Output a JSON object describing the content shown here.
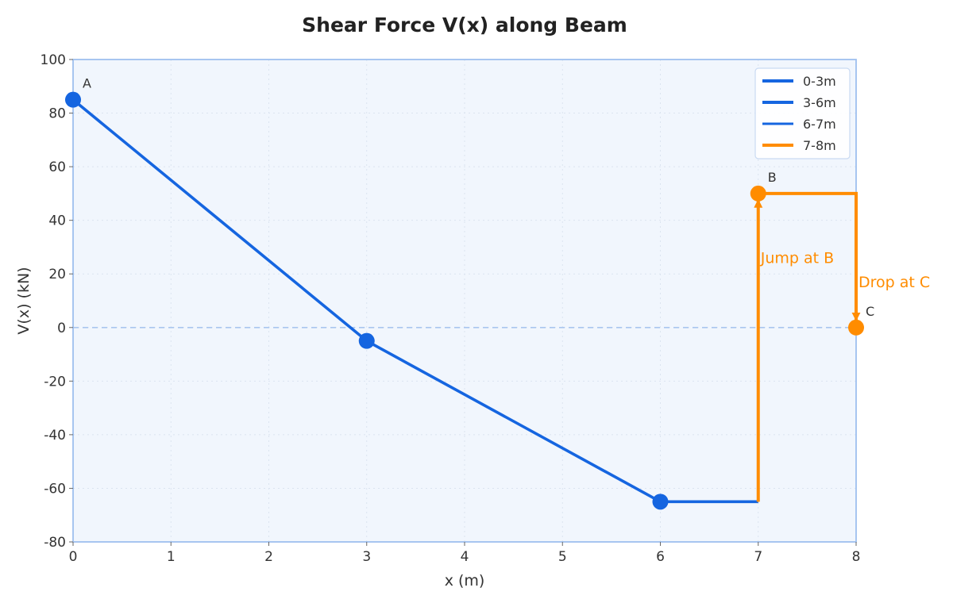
{
  "chart_data": {
    "type": "line",
    "title": "Shear Force V(x) along Beam",
    "xlabel": "x (m)",
    "ylabel": "V(x) (kN)",
    "xlim": [
      0,
      8
    ],
    "ylim": [
      -80,
      100
    ],
    "x_ticks": [
      "0",
      "1",
      "2",
      "3",
      "4",
      "5",
      "6",
      "7",
      "8"
    ],
    "y_ticks": [
      "100",
      "80",
      "60",
      "40",
      "20",
      "0",
      "-20",
      "-40",
      "-60",
      "-80"
    ],
    "grid": true,
    "legend_position": "top-right",
    "colors": {
      "blue": "#1565e0",
      "orange": "#ff8c00",
      "plot_bg": "#f1f6fd",
      "frame": "#9ec0ef"
    },
    "series": [
      {
        "name": "0-3m",
        "color": "#1565e0",
        "x": [
          0,
          3
        ],
        "y": [
          85,
          -5
        ]
      },
      {
        "name": "3-6m",
        "color": "#1565e0",
        "x": [
          3,
          6
        ],
        "y": [
          -5,
          -65
        ]
      },
      {
        "name": "6-7m",
        "color": "#1565e0",
        "x": [
          6,
          7
        ],
        "y": [
          -65,
          -65
        ]
      },
      {
        "name": "7-8m",
        "color": "#ff8c00",
        "x": [
          7,
          7,
          8,
          8
        ],
        "y": [
          -65,
          50,
          50,
          0
        ]
      }
    ],
    "markers": [
      {
        "x": 0,
        "y": 85,
        "color": "#1565e0",
        "label": "A"
      },
      {
        "x": 3,
        "y": -5,
        "color": "#1565e0",
        "label": ""
      },
      {
        "x": 6,
        "y": -65,
        "color": "#1565e0",
        "label": ""
      },
      {
        "x": 7,
        "y": 50,
        "color": "#ff8c00",
        "label": "B"
      },
      {
        "x": 8,
        "y": 0,
        "color": "#ff8c00",
        "label": "C"
      }
    ],
    "annotations": [
      {
        "text": "Jump at B",
        "x": 7,
        "y": 50,
        "color": "#ff8c00",
        "arrow_from": [
          7,
          -65
        ]
      },
      {
        "text": "Drop at C",
        "x": 8,
        "y": 0,
        "color": "#ff8c00",
        "arrow_from": [
          8,
          50
        ]
      }
    ]
  }
}
